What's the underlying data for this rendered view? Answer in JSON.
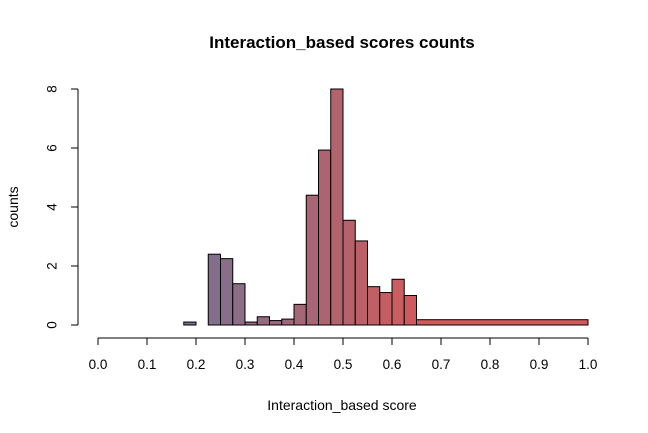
{
  "chart_data": {
    "type": "bar",
    "title": "Interaction_based scores counts",
    "xlabel": "Interaction_based score",
    "ylabel": "counts",
    "xlim": [
      0,
      1
    ],
    "ylim": [
      0,
      8
    ],
    "x_ticks": [
      "0.0",
      "0.1",
      "0.2",
      "0.3",
      "0.4",
      "0.5",
      "0.6",
      "0.7",
      "0.8",
      "0.9",
      "1.0"
    ],
    "y_ticks": [
      "0",
      "2",
      "4",
      "6",
      "8"
    ],
    "bars": [
      {
        "x0": 0.175,
        "x1": 0.2,
        "value": 0.1
      },
      {
        "x0": 0.225,
        "x1": 0.25,
        "value": 2.4
      },
      {
        "x0": 0.25,
        "x1": 0.275,
        "value": 2.25
      },
      {
        "x0": 0.275,
        "x1": 0.3,
        "value": 1.4
      },
      {
        "x0": 0.3,
        "x1": 0.325,
        "value": 0.1
      },
      {
        "x0": 0.325,
        "x1": 0.35,
        "value": 0.28
      },
      {
        "x0": 0.35,
        "x1": 0.375,
        "value": 0.15
      },
      {
        "x0": 0.375,
        "x1": 0.4,
        "value": 0.2
      },
      {
        "x0": 0.4,
        "x1": 0.425,
        "value": 0.7
      },
      {
        "x0": 0.425,
        "x1": 0.45,
        "value": 4.4
      },
      {
        "x0": 0.45,
        "x1": 0.475,
        "value": 5.93
      },
      {
        "x0": 0.475,
        "x1": 0.5,
        "value": 8.0
      },
      {
        "x0": 0.5,
        "x1": 0.525,
        "value": 3.55
      },
      {
        "x0": 0.525,
        "x1": 0.55,
        "value": 2.85
      },
      {
        "x0": 0.55,
        "x1": 0.575,
        "value": 1.3
      },
      {
        "x0": 0.575,
        "x1": 0.6,
        "value": 1.1
      },
      {
        "x0": 0.6,
        "x1": 0.625,
        "value": 1.55
      },
      {
        "x0": 0.625,
        "x1": 0.65,
        "value": 1.0
      },
      {
        "x0": 0.65,
        "x1": 1.0,
        "value": 0.18
      }
    ],
    "color_gradient": [
      "#7a7291",
      "#d25a5a"
    ],
    "grid": false,
    "legend": "none"
  }
}
